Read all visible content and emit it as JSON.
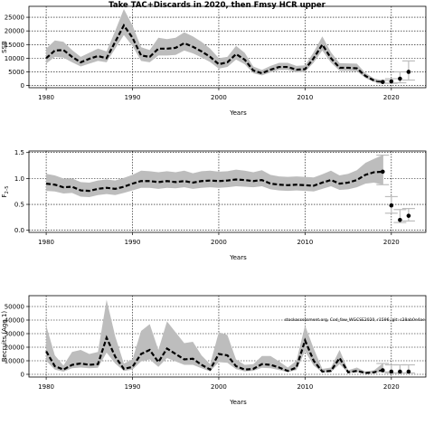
{
  "figure": {
    "title": "Take TAC+Discards in 2020, then Fmsy HCR upper",
    "annotation": "stockassessment.org, Cod_faw_WGCSE2020, r1596, git: c28ab0e4ae"
  },
  "chart_data": [
    {
      "type": "line",
      "name": "ssb",
      "xlabel": "Years",
      "ylabel": "SSB",
      "xlim": [
        1978,
        2024
      ],
      "ylim": [
        -800,
        29000
      ],
      "xticks": [
        1980,
        1990,
        2000,
        2010,
        2020
      ],
      "yticks": [
        0,
        5000,
        10000,
        15000,
        20000,
        25000
      ],
      "ytick_labels": [
        "0",
        "5000",
        "10000",
        "15000",
        "20000",
        "25000"
      ],
      "grid": true,
      "x": [
        1980,
        1981,
        1982,
        1983,
        1984,
        1985,
        1986,
        1987,
        1988,
        1989,
        1990,
        1991,
        1992,
        1993,
        1994,
        1995,
        1996,
        1997,
        1998,
        1999,
        2000,
        2001,
        2002,
        2003,
        2004,
        2005,
        2006,
        2007,
        2008,
        2009,
        2010,
        2011,
        2012,
        2013,
        2014,
        2015,
        2016,
        2017,
        2018,
        2019
      ],
      "estimate": [
        10000,
        12800,
        13000,
        10500,
        8500,
        9800,
        10800,
        10000,
        16000,
        22000,
        17500,
        11000,
        10500,
        13500,
        13500,
        13800,
        15500,
        14200,
        12500,
        10500,
        7800,
        8500,
        11500,
        9500,
        5500,
        4500,
        5800,
        6800,
        6800,
        5800,
        6000,
        10000,
        15000,
        10000,
        6500,
        6500,
        6300,
        3500,
        1800,
        1300
      ],
      "lower": [
        8000,
        10500,
        10200,
        8500,
        7000,
        8000,
        9000,
        8500,
        13500,
        18500,
        14500,
        9000,
        8500,
        11000,
        11000,
        11200,
        12800,
        11800,
        10300,
        8600,
        6200,
        6800,
        9500,
        7800,
        4500,
        3700,
        4800,
        5700,
        5700,
        4800,
        5000,
        8400,
        12800,
        8400,
        5400,
        5400,
        5200,
        2700,
        1300,
        900
      ],
      "upper": [
        13500,
        16500,
        16000,
        13000,
        10500,
        12000,
        13500,
        12500,
        20000,
        28000,
        22000,
        14000,
        13000,
        17500,
        17000,
        17500,
        19500,
        18000,
        16000,
        13500,
        10000,
        10500,
        14500,
        12000,
        7000,
        5700,
        7200,
        8300,
        8300,
        7200,
        7400,
        12200,
        18000,
        12200,
        8200,
        8100,
        8000,
        4600,
        2600,
        1900
      ],
      "projection": {
        "x": [
          2019,
          2020,
          2021,
          2022
        ],
        "values": [
          1300,
          1500,
          2500,
          5000
        ],
        "lower": [
          900,
          800,
          1000,
          2000
        ],
        "upper": [
          1900,
          2500,
          5000,
          9000
        ]
      }
    },
    {
      "type": "line",
      "name": "fbar",
      "xlabel": "Years",
      "ylabel": "F 2-5",
      "ylabel_parts": [
        "F",
        "2–5"
      ],
      "xlim": [
        1978,
        2024
      ],
      "ylim": [
        -0.04,
        1.53
      ],
      "xticks": [
        1980,
        1990,
        2000,
        2010,
        2020
      ],
      "yticks": [
        0,
        0.5,
        1,
        1.5
      ],
      "ytick_labels": [
        "0.0",
        "0.5",
        "1.0",
        "1.5"
      ],
      "grid": true,
      "x": [
        1980,
        1981,
        1982,
        1983,
        1984,
        1985,
        1986,
        1987,
        1988,
        1989,
        1990,
        1991,
        1992,
        1993,
        1994,
        1995,
        1996,
        1997,
        1998,
        1999,
        2000,
        2001,
        2002,
        2003,
        2004,
        2005,
        2006,
        2007,
        2008,
        2009,
        2010,
        2011,
        2012,
        2013,
        2014,
        2015,
        2016,
        2017,
        2018,
        2019
      ],
      "estimate": [
        0.9,
        0.88,
        0.83,
        0.84,
        0.77,
        0.76,
        0.8,
        0.82,
        0.8,
        0.84,
        0.9,
        0.95,
        0.95,
        0.93,
        0.95,
        0.93,
        0.95,
        0.92,
        0.95,
        0.96,
        0.95,
        0.96,
        0.98,
        0.97,
        0.95,
        0.97,
        0.9,
        0.88,
        0.87,
        0.88,
        0.87,
        0.86,
        0.92,
        0.97,
        0.9,
        0.92,
        0.97,
        1.07,
        1.12,
        1.13
      ],
      "lower": [
        0.76,
        0.75,
        0.71,
        0.72,
        0.65,
        0.64,
        0.68,
        0.7,
        0.68,
        0.72,
        0.77,
        0.82,
        0.82,
        0.8,
        0.82,
        0.81,
        0.83,
        0.8,
        0.82,
        0.83,
        0.82,
        0.83,
        0.85,
        0.84,
        0.83,
        0.85,
        0.79,
        0.77,
        0.76,
        0.77,
        0.76,
        0.75,
        0.8,
        0.85,
        0.78,
        0.79,
        0.83,
        0.9,
        0.92,
        0.88
      ],
      "upper": [
        1.09,
        1.06,
        1.0,
        1.0,
        0.93,
        0.92,
        0.96,
        0.98,
        0.96,
        1.01,
        1.07,
        1.15,
        1.14,
        1.12,
        1.14,
        1.12,
        1.15,
        1.1,
        1.14,
        1.15,
        1.13,
        1.14,
        1.17,
        1.15,
        1.12,
        1.16,
        1.07,
        1.04,
        1.03,
        1.04,
        1.03,
        1.02,
        1.08,
        1.15,
        1.06,
        1.09,
        1.16,
        1.3,
        1.38,
        1.45
      ],
      "projection": {
        "x": [
          2019,
          2020,
          2021,
          2022
        ],
        "values": [
          1.13,
          0.48,
          0.2,
          0.28
        ],
        "lower": [
          0.88,
          0.33,
          0.15,
          0.18
        ],
        "upper": [
          1.45,
          0.65,
          0.4,
          0.42
        ]
      }
    },
    {
      "type": "line",
      "name": "recruits",
      "xlabel": "Years",
      "ylabel": "Recruits (Age 1)",
      "xlim": [
        1978,
        2024
      ],
      "ylim": [
        -2000,
        58000
      ],
      "xticks": [
        1980,
        1990,
        2000,
        2010,
        2020
      ],
      "yticks": [
        0,
        10000,
        20000,
        30000,
        40000,
        50000
      ],
      "ytick_labels": [
        "0",
        "10000",
        "20000",
        "30000",
        "40000",
        "50000"
      ],
      "grid": true,
      "x": [
        1980,
        1981,
        1982,
        1983,
        1984,
        1985,
        1986,
        1987,
        1988,
        1989,
        1990,
        1991,
        1992,
        1993,
        1994,
        1995,
        1996,
        1997,
        1998,
        1999,
        2000,
        2001,
        2002,
        2003,
        2004,
        2005,
        2006,
        2007,
        2008,
        2009,
        2010,
        2011,
        2012,
        2013,
        2014,
        2015,
        2016,
        2017,
        2018,
        2019
      ],
      "estimate": [
        17000,
        6000,
        3500,
        7000,
        8000,
        7000,
        7500,
        27000,
        13000,
        4000,
        5500,
        15000,
        18000,
        9000,
        19000,
        15000,
        11000,
        11500,
        7000,
        3500,
        15000,
        14000,
        6000,
        3500,
        4000,
        7500,
        7000,
        5000,
        2500,
        5000,
        25000,
        10000,
        2000,
        2500,
        12000,
        1500,
        2500,
        1000,
        1500,
        3000
      ],
      "lower": [
        10000,
        3500,
        2000,
        4500,
        5000,
        4500,
        4800,
        16000,
        8000,
        2500,
        3500,
        9500,
        11000,
        5500,
        12000,
        9500,
        7000,
        7000,
        4500,
        2200,
        9000,
        8500,
        3800,
        2200,
        2600,
        4800,
        4500,
        3200,
        1600,
        3200,
        17000,
        6500,
        1300,
        1600,
        7500,
        1000,
        1600,
        600,
        900,
        1800
      ],
      "upper": [
        36000,
        14000,
        6500,
        16500,
        18000,
        15000,
        16500,
        55000,
        28000,
        8000,
        11000,
        32000,
        37000,
        18000,
        39000,
        31000,
        23000,
        24000,
        14000,
        7500,
        31000,
        29000,
        11000,
        7000,
        7500,
        13500,
        13500,
        9500,
        5000,
        10000,
        36000,
        19000,
        4000,
        5000,
        18000,
        3000,
        5000,
        2000,
        3000,
        8000
      ],
      "projection": {
        "x": [
          2019,
          2020,
          2021,
          2022
        ],
        "values": [
          3000,
          2000,
          2000,
          2000
        ],
        "lower": [
          1800,
          1000,
          1000,
          1000
        ],
        "upper": [
          8000,
          7000,
          7000,
          7000
        ]
      }
    }
  ]
}
